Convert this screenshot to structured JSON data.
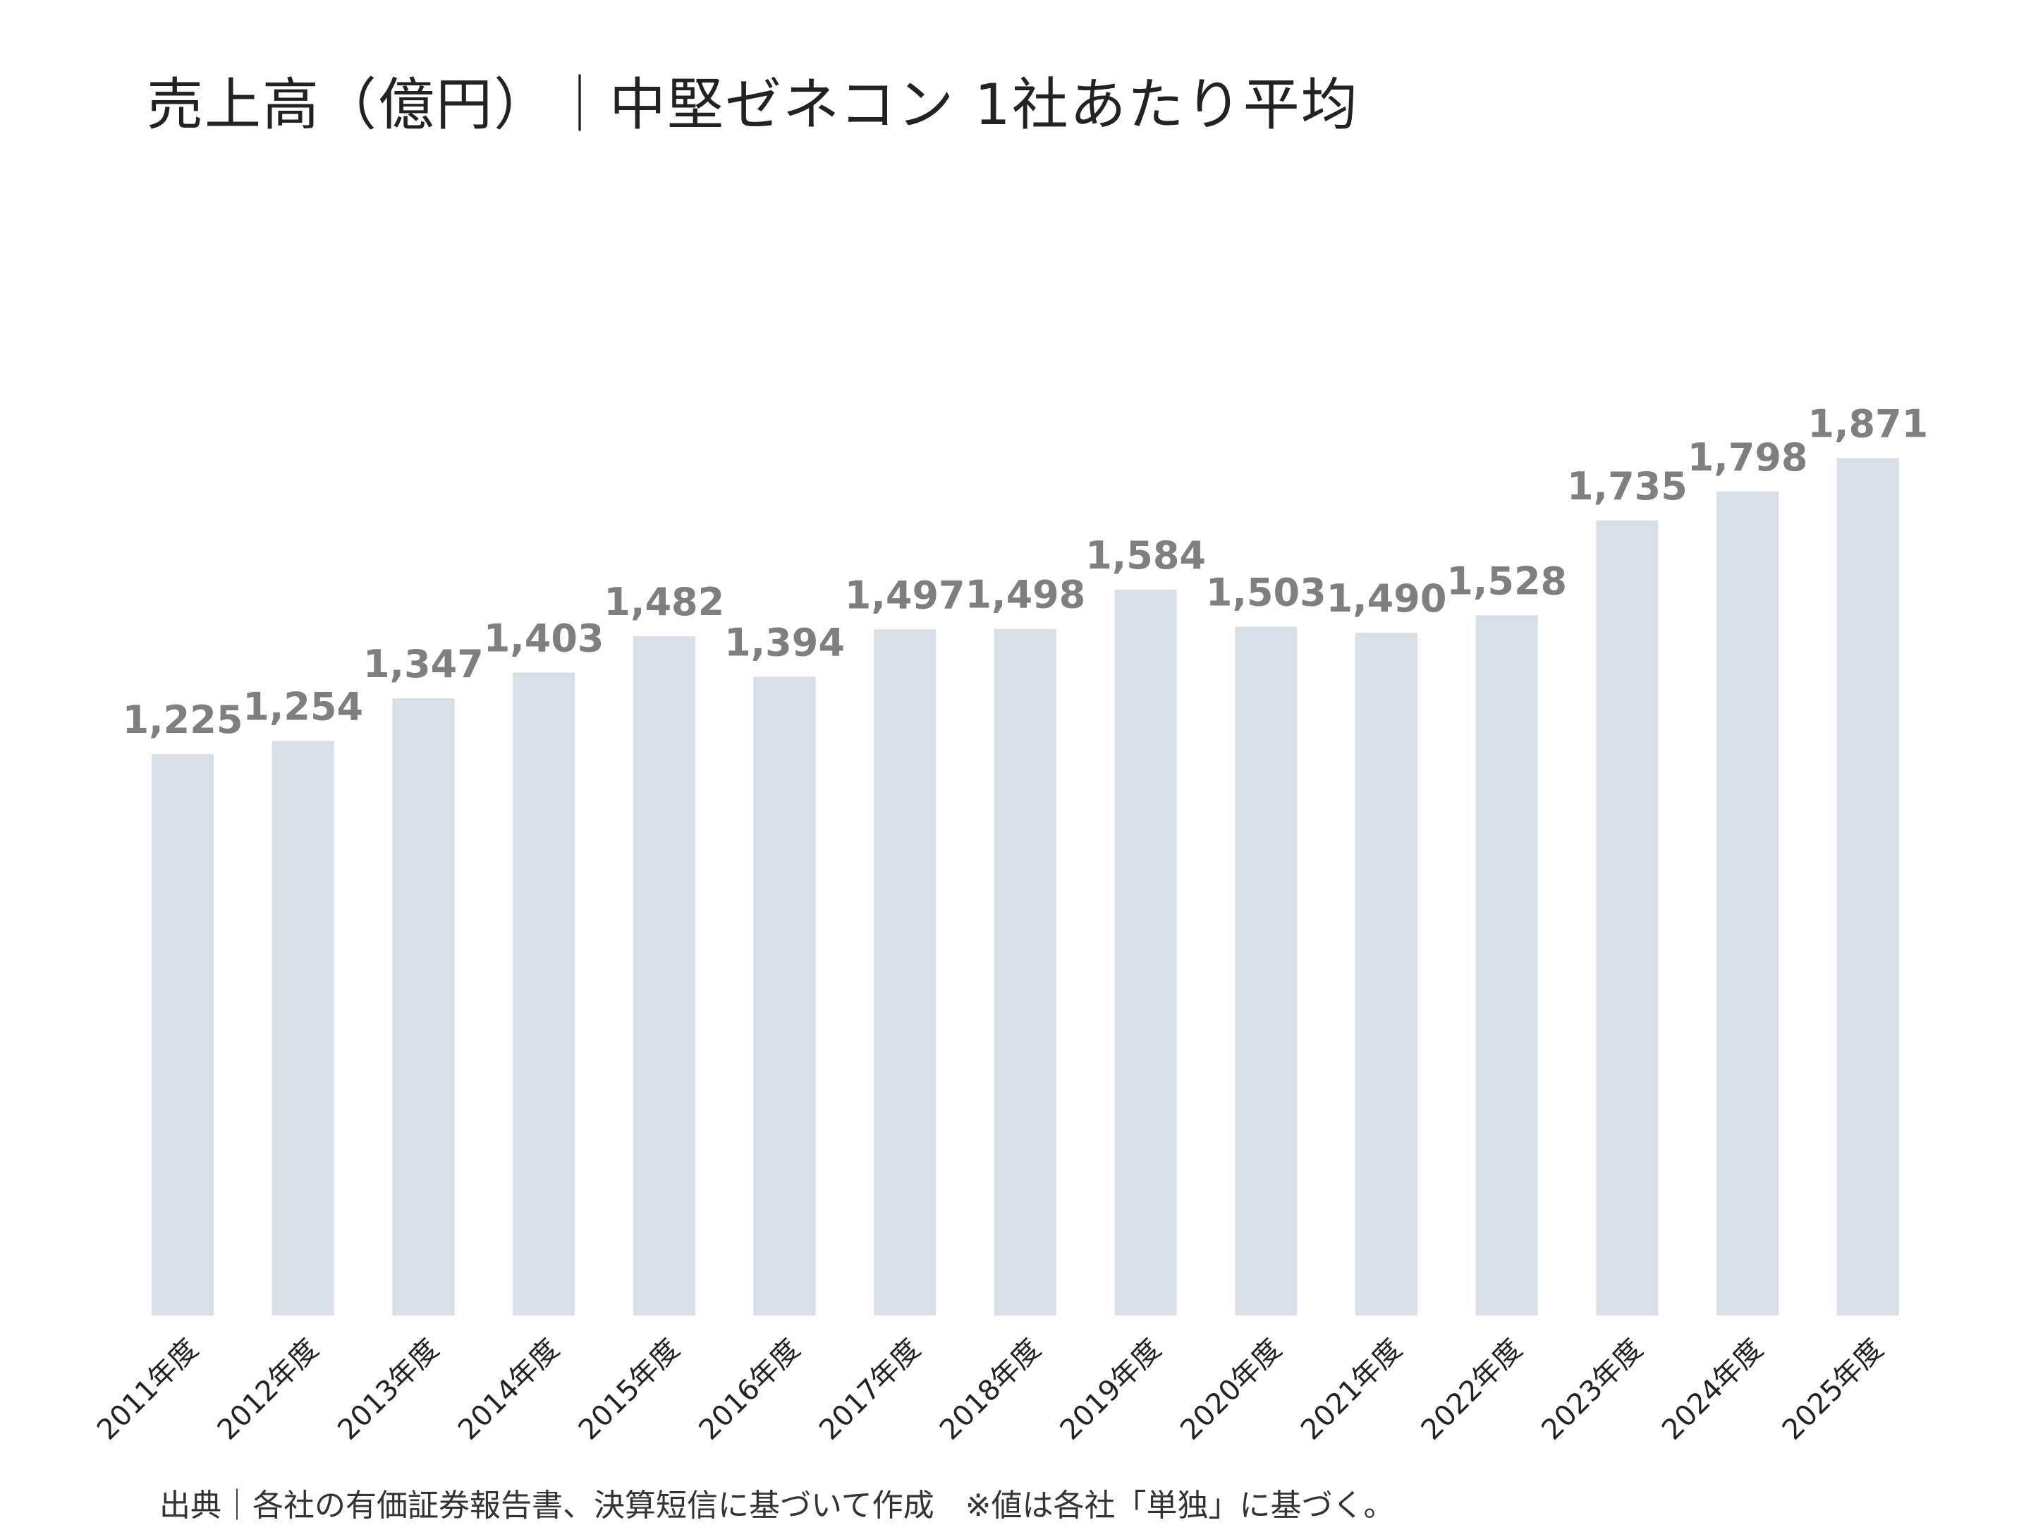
{
  "title": "売上高（億円）｜中堅ゼネコン 1社あたり平均",
  "source_note": "出典｜各社の有価証券報告書、決算短信に基づいて作成　※値は各社「単独」に基づく。",
  "colors": {
    "bar": "#d9dfe7",
    "value_label": "#7f7f7f",
    "category_label": "#222222",
    "title": "#222222"
  },
  "chart_data": {
    "type": "bar",
    "title": "売上高（億円）｜中堅ゼネコン 1社あたり平均",
    "xlabel": "",
    "ylabel": "",
    "ylim": [
      0,
      2000
    ],
    "grid": false,
    "legend": "none",
    "categories": [
      "2011年度",
      "2012年度",
      "2013年度",
      "2014年度",
      "2015年度",
      "2016年度",
      "2017年度",
      "2018年度",
      "2019年度",
      "2020年度",
      "2021年度",
      "2022年度",
      "2023年度",
      "2024年度",
      "2025年度"
    ],
    "values": [
      1225,
      1254,
      1347,
      1403,
      1482,
      1394,
      1497,
      1498,
      1584,
      1503,
      1490,
      1528,
      1735,
      1798,
      1871
    ],
    "value_labels": [
      "1,225",
      "1,254",
      "1,347",
      "1,403",
      "1,482",
      "1,394",
      "1,497",
      "1,498",
      "1,584",
      "1,503",
      "1,490",
      "1,528",
      "1,735",
      "1,798",
      "1,871"
    ]
  }
}
